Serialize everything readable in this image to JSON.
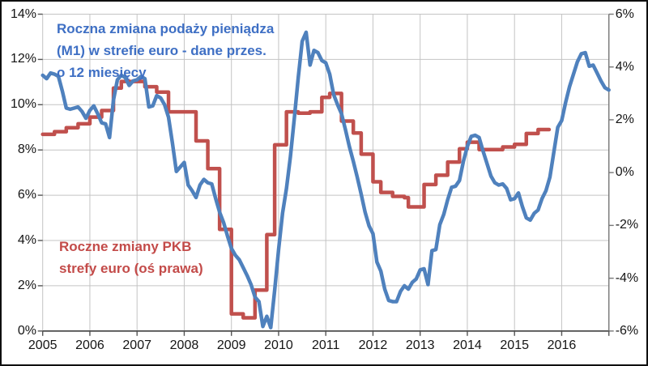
{
  "chart_data": {
    "type": "line",
    "x_start_year": 2005,
    "x_end_year": 2017,
    "x_tick_labels": [
      "2005",
      "2006",
      "2007",
      "2008",
      "2009",
      "2010",
      "2011",
      "2012",
      "2013",
      "2014",
      "2015",
      "2016"
    ],
    "left_axis": {
      "min": 0,
      "max": 14,
      "step": 2,
      "labels": [
        "0%",
        "2%",
        "4%",
        "6%",
        "8%",
        "10%",
        "12%",
        "14%"
      ]
    },
    "right_axis": {
      "min": -6,
      "max": 6,
      "step": 2,
      "labels": [
        "-6%",
        "-4%",
        "-2%",
        "0%",
        "2%",
        "4%",
        "6%"
      ]
    },
    "grid": true,
    "series": [
      {
        "name": "Roczna zmiana podaży pieniądza (M1) w strefie euro - dane przes. o 12 miesięcy",
        "axis": "left",
        "color": "#4F81BD",
        "text_color": "#3E6FC4",
        "line_style": "solid",
        "step": false,
        "start": "2005-01",
        "monthly_values": [
          11.3,
          11.15,
          11.4,
          11.35,
          11.25,
          10.6,
          9.85,
          9.8,
          9.85,
          9.9,
          9.7,
          9.4,
          9.75,
          9.95,
          9.6,
          9.2,
          9.15,
          8.55,
          10.2,
          11.1,
          11.3,
          11.2,
          10.85,
          11.05,
          11.1,
          11.25,
          11.15,
          9.9,
          9.95,
          10.4,
          10.3,
          10.0,
          9.45,
          8.3,
          7.05,
          7.25,
          7.45,
          6.45,
          6.2,
          5.9,
          6.45,
          6.7,
          6.55,
          6.5,
          5.85,
          5.25,
          4.8,
          4.2,
          3.65,
          3.35,
          3.15,
          2.8,
          2.45,
          2.05,
          1.5,
          1.3,
          0.2,
          0.65,
          0.15,
          1.8,
          3.6,
          5.2,
          6.3,
          7.7,
          9.4,
          11.2,
          12.8,
          13.2,
          11.75,
          12.4,
          12.3,
          11.95,
          11.85,
          11.35,
          10.45,
          10.0,
          9.6,
          8.9,
          8.15,
          7.5,
          6.8,
          6.05,
          5.25,
          4.65,
          4.3,
          3.05,
          2.65,
          1.85,
          1.35,
          1.3,
          1.3,
          1.75,
          2.0,
          1.85,
          2.15,
          2.3,
          2.7,
          2.75,
          2.05,
          3.55,
          3.6,
          4.7,
          5.15,
          5.8,
          6.35,
          6.4,
          6.65,
          7.5,
          8.15,
          8.6,
          8.65,
          8.55,
          7.95,
          7.4,
          6.85,
          6.55,
          6.45,
          6.5,
          6.3,
          5.8,
          5.85,
          6.1,
          5.5,
          5.0,
          4.9,
          5.2,
          5.35,
          5.85,
          6.2,
          6.8,
          7.9,
          9.0,
          9.3,
          10.1,
          10.8,
          11.35,
          11.9,
          12.25,
          12.3,
          11.7,
          11.75,
          11.4,
          11.05,
          10.75,
          10.65
        ],
        "label_lines": [
          "Roczna zmiana podaży pieniądza",
          "(M1) w strefie euro - dane przes.",
          "o 12 miesięcy"
        ]
      },
      {
        "name": "Roczne zmiany PKB strefy euro (oś prawa)",
        "axis": "right",
        "color": "#C0504D",
        "text_color": "#C34B49",
        "line_style": "solid",
        "step": true,
        "start": "2005-01",
        "monthly_values": [
          1.45,
          1.45,
          1.45,
          1.55,
          1.55,
          1.55,
          1.7,
          1.7,
          1.7,
          1.85,
          1.85,
          1.85,
          2.1,
          2.1,
          2.1,
          2.35,
          2.35,
          2.35,
          3.2,
          3.2,
          3.45,
          3.45,
          3.45,
          3.45,
          3.45,
          3.45,
          3.25,
          3.25,
          3.25,
          3.05,
          3.05,
          3.05,
          2.3,
          2.3,
          2.3,
          2.3,
          2.3,
          2.3,
          2.3,
          1.2,
          1.2,
          1.2,
          0.15,
          0.15,
          0.15,
          -2.15,
          -2.15,
          -2.15,
          -5.35,
          -5.35,
          -5.35,
          -5.5,
          -5.5,
          -5.5,
          -4.45,
          -4.45,
          -4.45,
          -2.35,
          -2.35,
          1.05,
          1.05,
          1.05,
          2.3,
          2.3,
          2.3,
          2.25,
          2.25,
          2.25,
          2.3,
          2.3,
          2.3,
          2.85,
          2.85,
          3.0,
          3.0,
          3.0,
          1.95,
          1.95,
          1.95,
          1.5,
          1.5,
          0.7,
          0.7,
          0.7,
          -0.35,
          -0.35,
          -0.75,
          -0.75,
          -0.75,
          -0.9,
          -0.9,
          -0.9,
          -0.95,
          -1.3,
          -1.3,
          -1.3,
          -1.3,
          -0.45,
          -0.45,
          -0.45,
          -0.1,
          -0.1,
          -0.1,
          0.4,
          0.4,
          0.4,
          0.9,
          0.9,
          1.15,
          1.15,
          1.15,
          0.87,
          0.87,
          0.87,
          0.87,
          0.87,
          0.87,
          0.97,
          0.97,
          0.97,
          1.07,
          1.07,
          1.07,
          1.48,
          1.48,
          1.48,
          1.63,
          1.63,
          1.63
        ],
        "label_lines": [
          "Roczne zmiany PKB",
          "strefy euro (oś prawa)"
        ]
      }
    ],
    "colors": {
      "gridline": "#C4C4C4",
      "x_axis": "#3f3f3f",
      "right_axis": "#777777",
      "tick": "#555555",
      "right_tick": "#777777",
      "label_text": "#141414",
      "border": "#0f0f0f"
    }
  }
}
